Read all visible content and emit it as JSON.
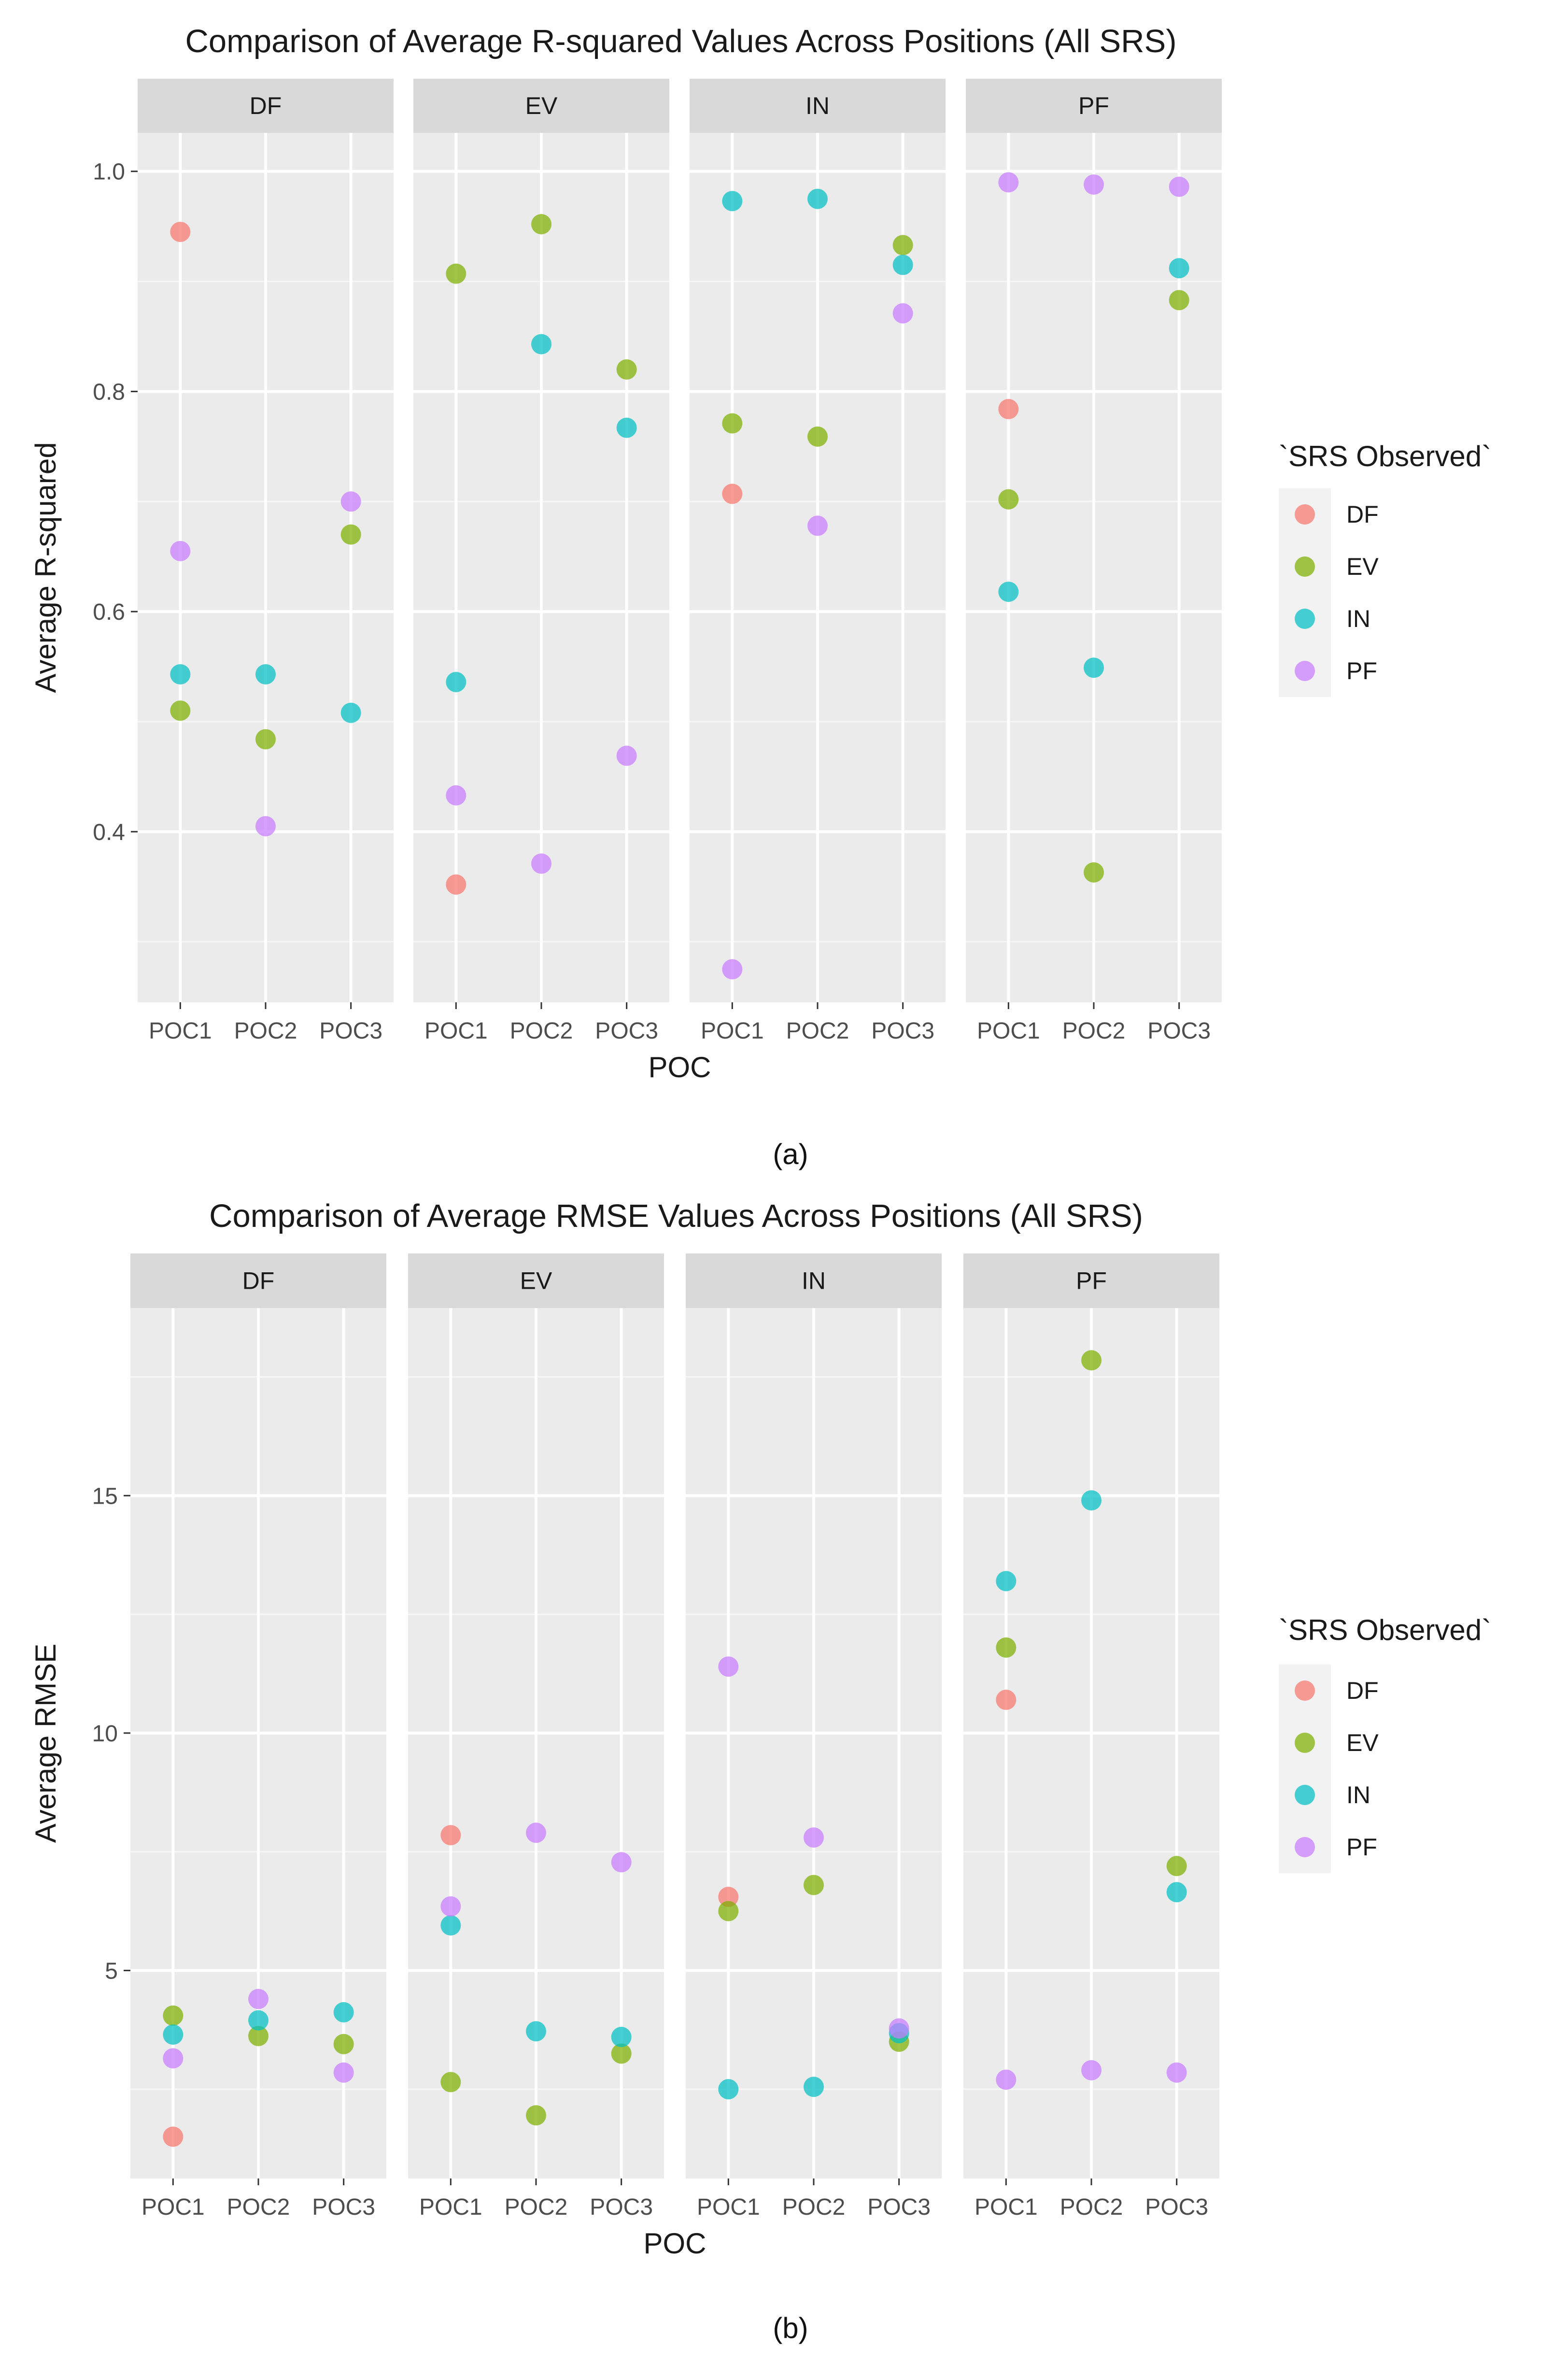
{
  "colors": {
    "DF": "#F8766D",
    "EV": "#7CAE00",
    "IN": "#00BFC4",
    "PF": "#C77CFF",
    "panel_bg": "#EBEBEB",
    "strip_bg": "#D9D9D9",
    "grid": "#FFFFFF",
    "text": "#1A1A1A",
    "axis_text": "#4D4D4D"
  },
  "figure": {
    "caption_a": "(a)",
    "caption_b": "(b)"
  },
  "chart_data": [
    {
      "type": "scatter",
      "title": "Comparison of Average R-squared Values Across Positions (All SRS)",
      "xlabel": "POC",
      "ylabel": "Average R-squared",
      "facets": [
        "DF",
        "EV",
        "IN",
        "PF"
      ],
      "categories": [
        "POC1",
        "POC2",
        "POC3"
      ],
      "ylim": [
        0.245,
        1.035
      ],
      "yticks": [
        0.4,
        0.6,
        0.8,
        1.0
      ],
      "ytick_labels": [
        "0.4",
        "0.6",
        "0.8",
        "1.0"
      ],
      "grid": true,
      "legend": {
        "title": "`SRS Observed`",
        "position": "right",
        "entries": [
          "DF",
          "EV",
          "IN",
          "PF"
        ]
      },
      "series": [
        {
          "name": "DF",
          "points": [
            {
              "facet": "DF",
              "x": "POC1",
              "y": 0.945
            },
            {
              "facet": "EV",
              "x": "POC1",
              "y": 0.352
            },
            {
              "facet": "IN",
              "x": "POC1",
              "y": 0.707
            },
            {
              "facet": "PF",
              "x": "POC1",
              "y": 0.784
            }
          ]
        },
        {
          "name": "EV",
          "points": [
            {
              "facet": "DF",
              "x": "POC1",
              "y": 0.51
            },
            {
              "facet": "DF",
              "x": "POC2",
              "y": 0.484
            },
            {
              "facet": "DF",
              "x": "POC3",
              "y": 0.67
            },
            {
              "facet": "EV",
              "x": "POC1",
              "y": 0.907
            },
            {
              "facet": "EV",
              "x": "POC2",
              "y": 0.952
            },
            {
              "facet": "EV",
              "x": "POC3",
              "y": 0.82
            },
            {
              "facet": "IN",
              "x": "POC1",
              "y": 0.771
            },
            {
              "facet": "IN",
              "x": "POC2",
              "y": 0.759
            },
            {
              "facet": "IN",
              "x": "POC3",
              "y": 0.933
            },
            {
              "facet": "PF",
              "x": "POC1",
              "y": 0.702
            },
            {
              "facet": "PF",
              "x": "POC2",
              "y": 0.363
            },
            {
              "facet": "PF",
              "x": "POC3",
              "y": 0.883
            }
          ]
        },
        {
          "name": "IN",
          "points": [
            {
              "facet": "DF",
              "x": "POC1",
              "y": 0.543
            },
            {
              "facet": "DF",
              "x": "POC2",
              "y": 0.543
            },
            {
              "facet": "DF",
              "x": "POC3",
              "y": 0.508
            },
            {
              "facet": "EV",
              "x": "POC1",
              "y": 0.536
            },
            {
              "facet": "EV",
              "x": "POC2",
              "y": 0.843
            },
            {
              "facet": "EV",
              "x": "POC3",
              "y": 0.767
            },
            {
              "facet": "IN",
              "x": "POC1",
              "y": 0.973
            },
            {
              "facet": "IN",
              "x": "POC2",
              "y": 0.975
            },
            {
              "facet": "IN",
              "x": "POC3",
              "y": 0.915
            },
            {
              "facet": "PF",
              "x": "POC1",
              "y": 0.618
            },
            {
              "facet": "PF",
              "x": "POC2",
              "y": 0.549
            },
            {
              "facet": "PF",
              "x": "POC3",
              "y": 0.912
            }
          ]
        },
        {
          "name": "PF",
          "points": [
            {
              "facet": "DF",
              "x": "POC1",
              "y": 0.655
            },
            {
              "facet": "DF",
              "x": "POC2",
              "y": 0.405
            },
            {
              "facet": "DF",
              "x": "POC3",
              "y": 0.7
            },
            {
              "facet": "EV",
              "x": "POC1",
              "y": 0.433
            },
            {
              "facet": "EV",
              "x": "POC2",
              "y": 0.371
            },
            {
              "facet": "EV",
              "x": "POC3",
              "y": 0.469
            },
            {
              "facet": "IN",
              "x": "POC1",
              "y": 0.275
            },
            {
              "facet": "IN",
              "x": "POC2",
              "y": 0.678
            },
            {
              "facet": "IN",
              "x": "POC3",
              "y": 0.871
            },
            {
              "facet": "PF",
              "x": "POC1",
              "y": 0.99
            },
            {
              "facet": "PF",
              "x": "POC2",
              "y": 0.988
            },
            {
              "facet": "PF",
              "x": "POC3",
              "y": 0.986
            }
          ]
        }
      ]
    },
    {
      "type": "scatter",
      "title": "Comparison of Average RMSE Values Across Positions (All SRS)",
      "xlabel": "POC",
      "ylabel": "Average RMSE",
      "facets": [
        "DF",
        "EV",
        "IN",
        "PF"
      ],
      "categories": [
        "POC1",
        "POC2",
        "POC3"
      ],
      "ylim": [
        0.62,
        18.95
      ],
      "yticks": [
        5,
        10,
        15
      ],
      "ytick_labels": [
        "5",
        "10",
        "15"
      ],
      "grid": true,
      "legend": {
        "title": "`SRS Observed`",
        "position": "right",
        "entries": [
          "DF",
          "EV",
          "IN",
          "PF"
        ]
      },
      "series": [
        {
          "name": "DF",
          "points": [
            {
              "facet": "DF",
              "x": "POC1",
              "y": 1.5
            },
            {
              "facet": "EV",
              "x": "POC1",
              "y": 7.85
            },
            {
              "facet": "IN",
              "x": "POC1",
              "y": 6.55
            },
            {
              "facet": "PF",
              "x": "POC1",
              "y": 10.7
            }
          ]
        },
        {
          "name": "EV",
          "points": [
            {
              "facet": "DF",
              "x": "POC1",
              "y": 4.05
            },
            {
              "facet": "DF",
              "x": "POC2",
              "y": 3.62
            },
            {
              "facet": "DF",
              "x": "POC3",
              "y": 3.45
            },
            {
              "facet": "EV",
              "x": "POC1",
              "y": 2.65
            },
            {
              "facet": "EV",
              "x": "POC2",
              "y": 1.95
            },
            {
              "facet": "EV",
              "x": "POC3",
              "y": 3.25
            },
            {
              "facet": "IN",
              "x": "POC1",
              "y": 6.25
            },
            {
              "facet": "IN",
              "x": "POC2",
              "y": 6.8
            },
            {
              "facet": "IN",
              "x": "POC3",
              "y": 3.5
            },
            {
              "facet": "PF",
              "x": "POC1",
              "y": 11.8
            },
            {
              "facet": "PF",
              "x": "POC2",
              "y": 17.85
            },
            {
              "facet": "PF",
              "x": "POC3",
              "y": 7.2
            }
          ]
        },
        {
          "name": "IN",
          "points": [
            {
              "facet": "DF",
              "x": "POC1",
              "y": 3.65
            },
            {
              "facet": "DF",
              "x": "POC2",
              "y": 3.95
            },
            {
              "facet": "DF",
              "x": "POC3",
              "y": 4.12
            },
            {
              "facet": "EV",
              "x": "POC1",
              "y": 5.95
            },
            {
              "facet": "EV",
              "x": "POC2",
              "y": 3.72
            },
            {
              "facet": "EV",
              "x": "POC3",
              "y": 3.6
            },
            {
              "facet": "IN",
              "x": "POC1",
              "y": 2.5
            },
            {
              "facet": "IN",
              "x": "POC2",
              "y": 2.55
            },
            {
              "facet": "IN",
              "x": "POC3",
              "y": 3.68
            },
            {
              "facet": "PF",
              "x": "POC1",
              "y": 13.2
            },
            {
              "facet": "PF",
              "x": "POC2",
              "y": 14.9
            },
            {
              "facet": "PF",
              "x": "POC3",
              "y": 6.65
            }
          ]
        },
        {
          "name": "PF",
          "points": [
            {
              "facet": "DF",
              "x": "POC1",
              "y": 3.15
            },
            {
              "facet": "DF",
              "x": "POC2",
              "y": 4.4
            },
            {
              "facet": "DF",
              "x": "POC3",
              "y": 2.85
            },
            {
              "facet": "EV",
              "x": "POC1",
              "y": 6.35
            },
            {
              "facet": "EV",
              "x": "POC2",
              "y": 7.9
            },
            {
              "facet": "EV",
              "x": "POC3",
              "y": 7.28
            },
            {
              "facet": "IN",
              "x": "POC1",
              "y": 11.4
            },
            {
              "facet": "IN",
              "x": "POC2",
              "y": 7.8
            },
            {
              "facet": "IN",
              "x": "POC3",
              "y": 3.78
            },
            {
              "facet": "PF",
              "x": "POC1",
              "y": 2.7
            },
            {
              "facet": "PF",
              "x": "POC2",
              "y": 2.9
            },
            {
              "facet": "PF",
              "x": "POC3",
              "y": 2.85
            }
          ]
        }
      ]
    }
  ]
}
